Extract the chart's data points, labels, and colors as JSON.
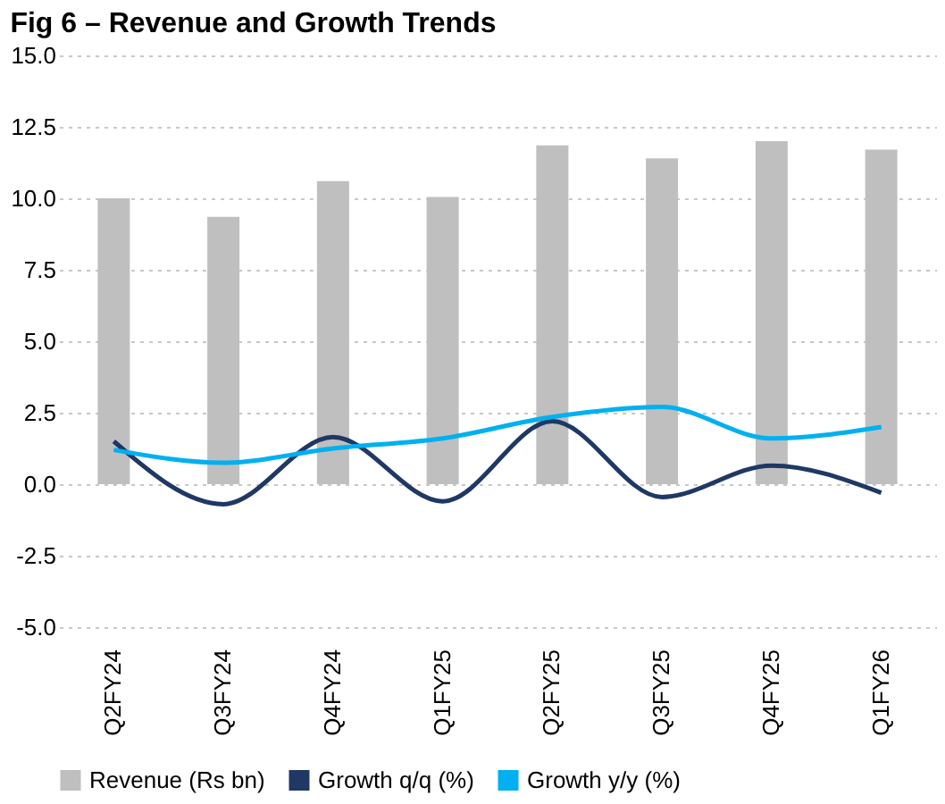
{
  "chart_data": {
    "type": "bar",
    "title": "Fig 6 – Revenue and Growth Trends",
    "categories": [
      "Q2FY24",
      "Q3FY24",
      "Q4FY24",
      "Q1FY25",
      "Q2FY25",
      "Q3FY25",
      "Q4FY25",
      "Q1FY26"
    ],
    "series": [
      {
        "name": "Revenue (Rs bn)",
        "color": "#bfbfbf",
        "values": [
          10.0,
          9.35,
          10.6,
          10.05,
          11.85,
          11.4,
          12.0,
          11.7
        ]
      },
      {
        "name": "Growth q/q (%)",
        "type": "line",
        "color": "#1f3864",
        "values": [
          1.5,
          -0.7,
          1.65,
          -0.6,
          2.2,
          -0.45,
          0.65,
          -0.3
        ]
      },
      {
        "name": "Growth y/y (%)",
        "type": "line",
        "color": "#00b0f0",
        "values": [
          1.2,
          0.75,
          1.25,
          1.6,
          2.35,
          2.7,
          1.6,
          2.0
        ]
      }
    ],
    "ylim": [
      -5,
      15
    ],
    "yticks": [
      {
        "value": -5,
        "label": "-5.0"
      },
      {
        "value": -2.5,
        "label": "-2.5"
      },
      {
        "value": 0,
        "label": "0.0"
      },
      {
        "value": 2.5,
        "label": "2.5"
      },
      {
        "value": 5,
        "label": "5.0"
      },
      {
        "value": 7.5,
        "label": "7.5"
      },
      {
        "value": 10,
        "label": "10.0"
      },
      {
        "value": 12.5,
        "label": "12.5"
      },
      {
        "value": 15,
        "label": "15.0"
      }
    ],
    "grid": "y",
    "legend": "bottom",
    "marker": "none",
    "line_style": "solid"
  }
}
